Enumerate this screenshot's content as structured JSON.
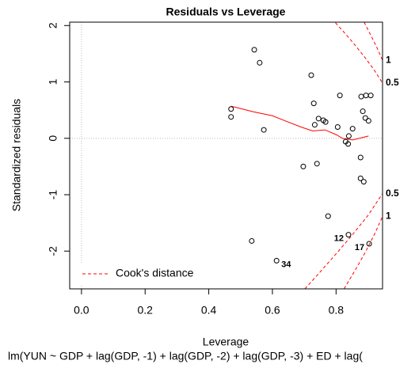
{
  "chart_data": {
    "type": "scatter",
    "title": "Residuals vs Leverage",
    "x_label": "Leverage",
    "y_label": "Standardized residuals",
    "subtitle": "lm(YUN ~ GDP + lag(GDP, -1) + lag(GDP, -2) + lag(GDP, -3) + ED + lag(",
    "xlim": [
      -0.037,
      0.946
    ],
    "ylim": [
      -2.67,
      2.06
    ],
    "xticks": [
      {
        "value": 0,
        "label": "0.0"
      },
      0.2,
      0.4,
      0.6,
      0.8
    ],
    "yticks": [
      -2,
      -1,
      0,
      1,
      2
    ],
    "zero_lines": true,
    "point_color": "#000000",
    "x": [
      0.47,
      0.47,
      0.543,
      0.56,
      0.573,
      0.722,
      0.73,
      0.745,
      0.76,
      0.767,
      0.733,
      0.812,
      0.805,
      0.852,
      0.83,
      0.84,
      0.838,
      0.884,
      0.892,
      0.902,
      0.879,
      0.894,
      0.909,
      0.877,
      0.74,
      0.697,
      0.877,
      0.887,
      0.775,
      0.839,
      0.904,
      0.535,
      0.613
    ],
    "values": [
      0.52,
      0.38,
      1.57,
      1.34,
      0.15,
      1.12,
      0.62,
      0.35,
      0.32,
      0.29,
      0.24,
      0.76,
      0.2,
      0.17,
      -0.06,
      0.04,
      -0.1,
      0.48,
      0.36,
      0.31,
      0.74,
      0.76,
      0.76,
      -0.34,
      -0.45,
      -0.5,
      -0.71,
      -0.77,
      -1.38,
      -1.71,
      -1.87,
      -1.82,
      -2.17
    ],
    "point_labels": [
      null,
      null,
      null,
      null,
      null,
      null,
      null,
      null,
      null,
      null,
      null,
      null,
      null,
      null,
      null,
      null,
      null,
      null,
      null,
      null,
      null,
      null,
      null,
      null,
      null,
      null,
      null,
      null,
      null,
      "12",
      "17",
      null,
      "34"
    ],
    "smooth": {
      "color": "#ff0000",
      "x": [
        0.47,
        0.54,
        0.6,
        0.64,
        0.69,
        0.727,
        0.765,
        0.802,
        0.82,
        0.852,
        0.902
      ],
      "values": [
        0.57,
        0.47,
        0.4,
        0.31,
        0.2,
        0.13,
        0.15,
        0.06,
        0.0,
        -0.03,
        0.04
      ]
    },
    "cook": {
      "label": "Cook's distance",
      "color": "#ff0000",
      "text_color": "#8b0000",
      "curves": [
        {
          "label": "1",
          "x": [
            0.888,
            0.91,
            0.93,
            0.946
          ],
          "values": [
            2.06,
            1.82,
            1.59,
            1.385
          ]
        },
        {
          "label": "0.5",
          "x": [
            0.798,
            0.83,
            0.86,
            0.89,
            0.92,
            0.946
          ],
          "values": [
            2.05,
            1.85,
            1.65,
            1.44,
            1.21,
            0.98
          ]
        },
        {
          "label": "0.5",
          "x": [
            0.702,
            0.75,
            0.8,
            0.85,
            0.9,
            0.946
          ],
          "values": [
            -2.67,
            -2.37,
            -2.05,
            -1.72,
            -1.37,
            -0.98
          ]
        },
        {
          "label": "1",
          "x": [
            0.825,
            0.86,
            0.89,
            0.92,
            0.946
          ],
          "values": [
            -2.67,
            -2.34,
            -2.04,
            -1.71,
            -1.385
          ]
        }
      ]
    }
  }
}
